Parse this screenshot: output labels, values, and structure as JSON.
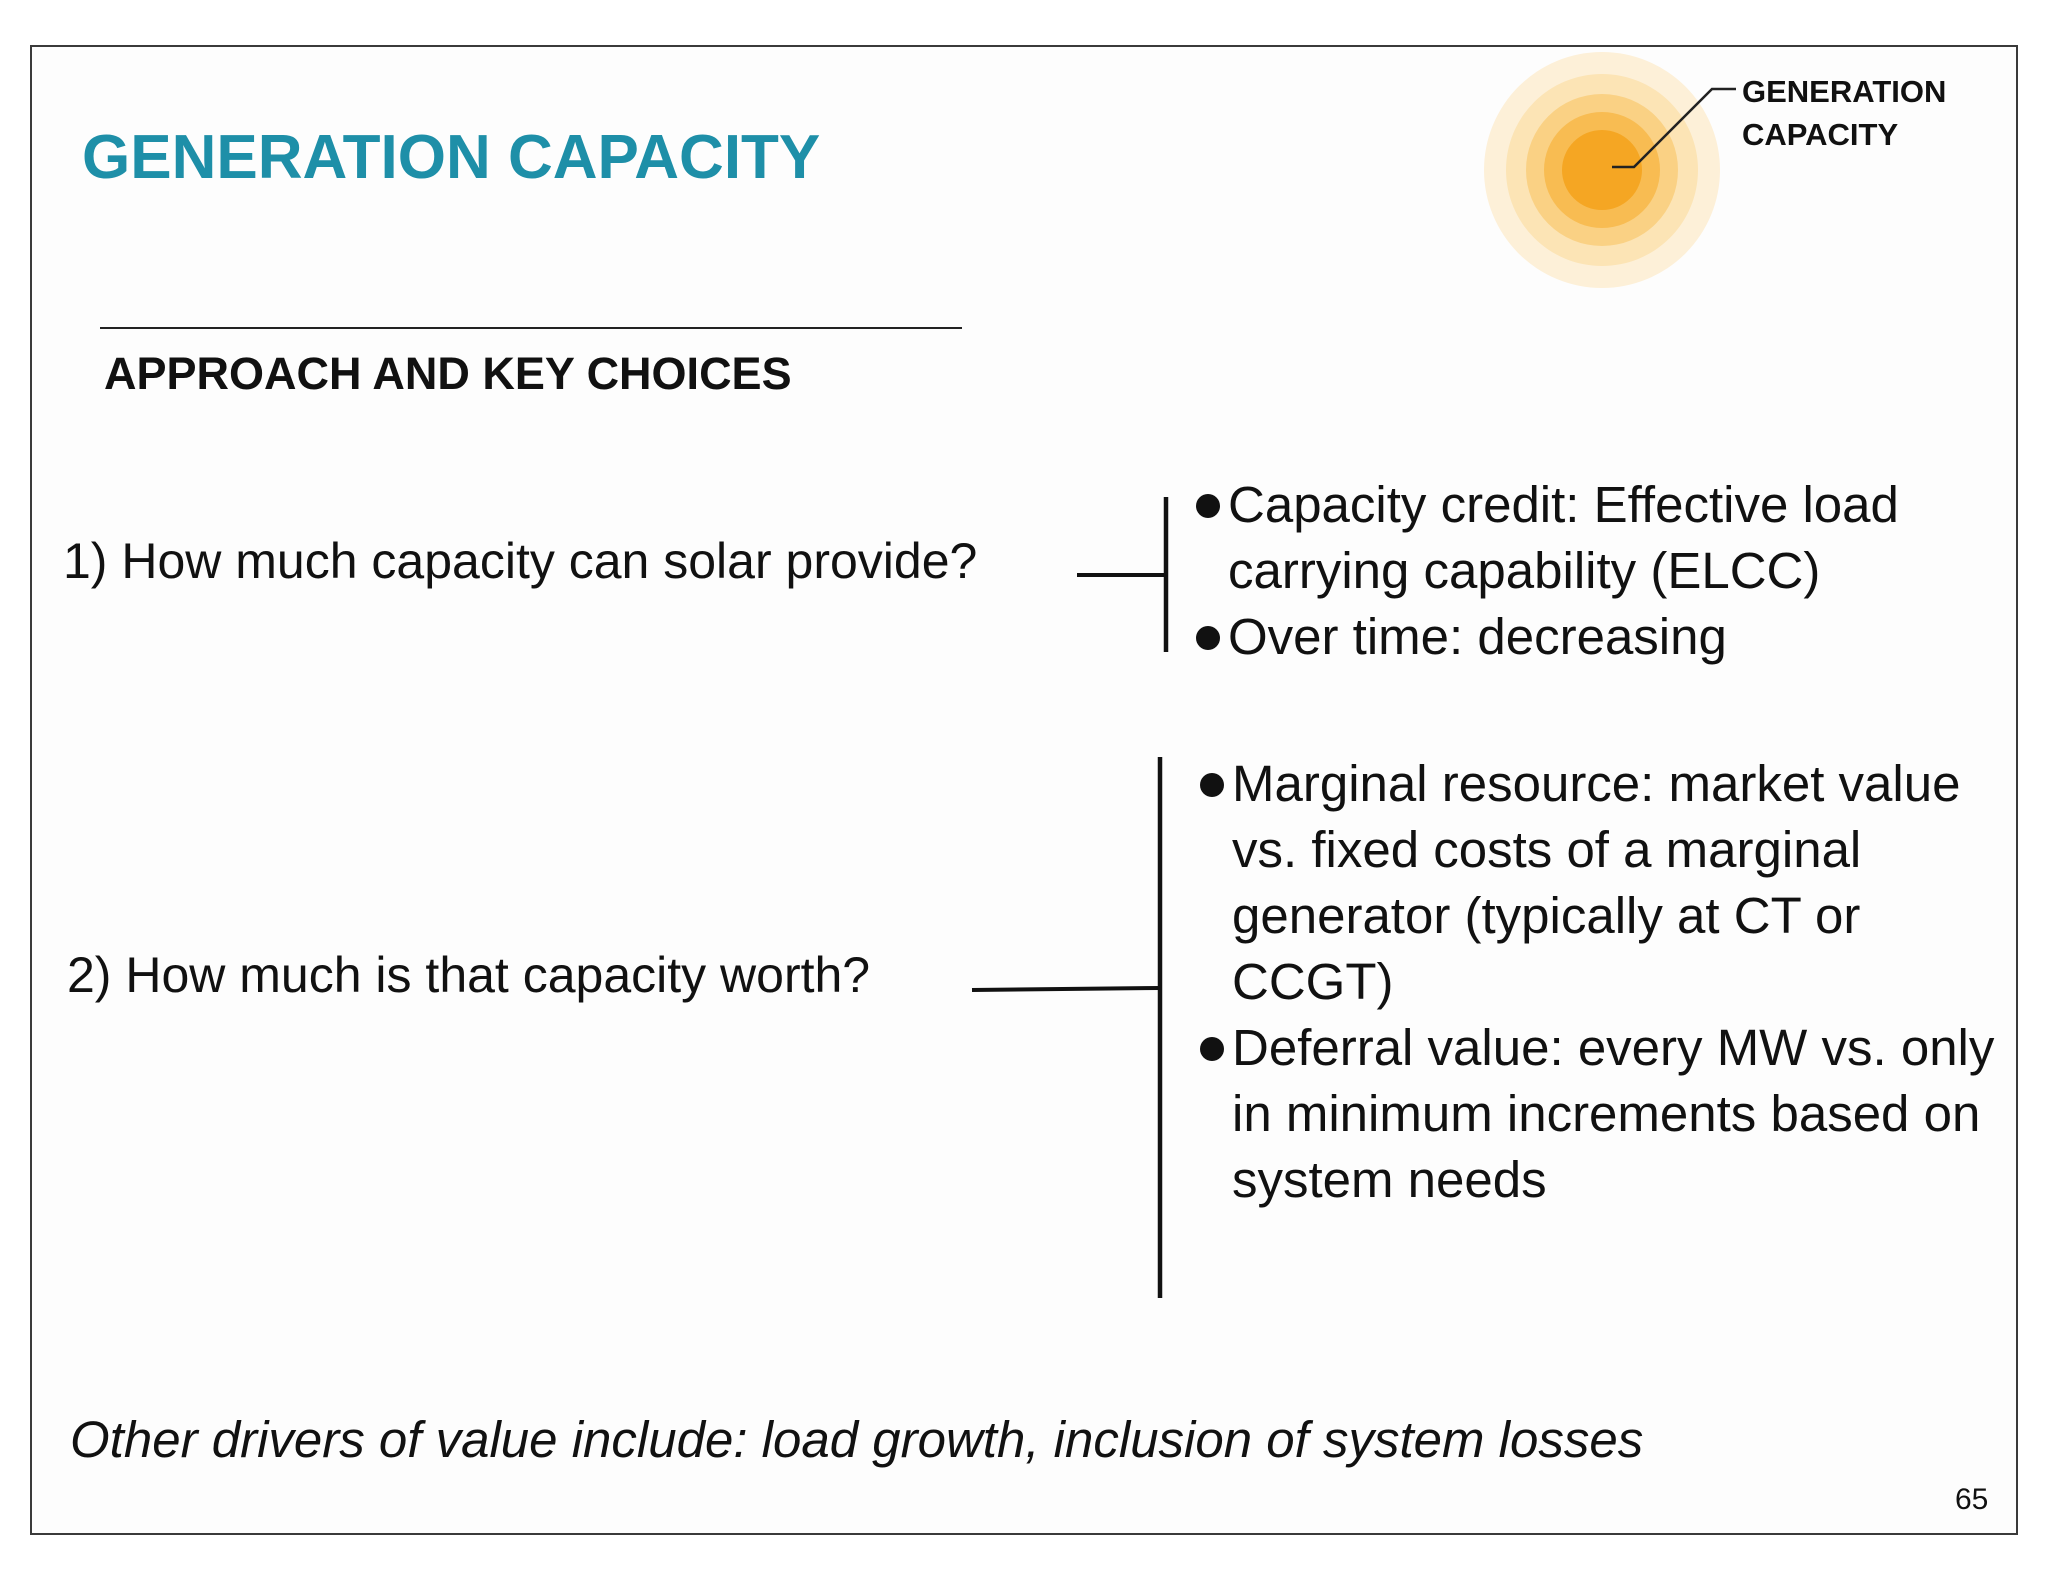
{
  "slide": {
    "title": "GENERATION CAPACITY",
    "section_heading": "APPROACH AND KEY CHOICES",
    "icon": {
      "name": "sun-icon",
      "label_line1": "GENERATION",
      "label_line2": "CAPACITY",
      "colors": {
        "core": "#f5a623",
        "ring1": "#f8bc52",
        "ring2": "#fad184",
        "ring3": "#fce4b5",
        "outer": "#fdf0d8"
      }
    },
    "questions": [
      {
        "text": "1) How much capacity can solar provide?",
        "bullets": [
          "Capacity credit: Effective load carrying capability (ELCC)",
          "Over time: decreasing"
        ]
      },
      {
        "text": "2) How much is that capacity worth?",
        "bullets": [
          "Marginal resource: market value vs. fixed costs of a marginal generator (typically at CT or CCGT)",
          "Deferral value: every MW vs. only in minimum increments based on system needs"
        ]
      }
    ],
    "footnote": "Other drivers of value include: load growth, inclusion of system losses",
    "page_number": "65",
    "colors": {
      "title": "#1e8fa8",
      "text": "#111111",
      "border": "#3a3a3a"
    }
  }
}
